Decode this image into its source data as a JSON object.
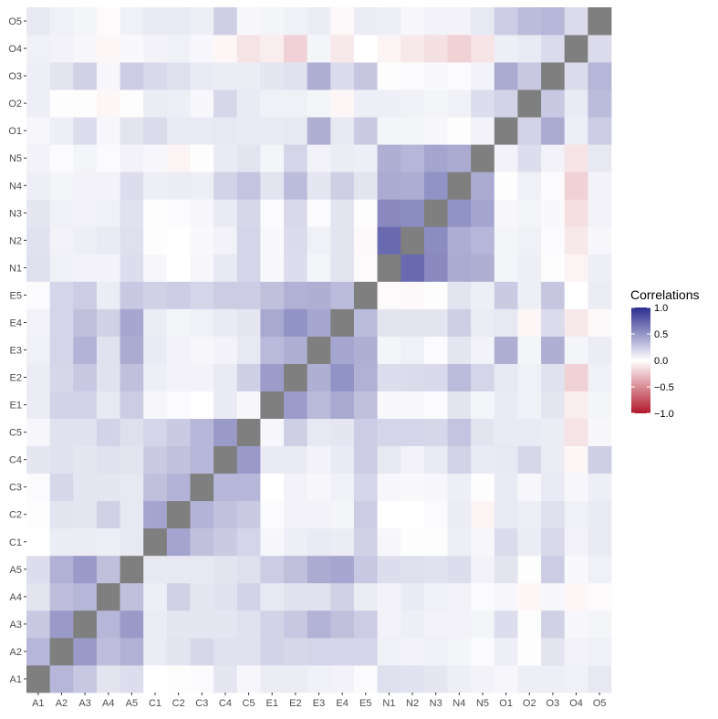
{
  "chart_data": {
    "type": "heatmap",
    "x_categories": [
      "A1",
      "A2",
      "A3",
      "A4",
      "A5",
      "C1",
      "C2",
      "C3",
      "C4",
      "C5",
      "E1",
      "E2",
      "E3",
      "E4",
      "E5",
      "N1",
      "N2",
      "N3",
      "N4",
      "N5",
      "O1",
      "O2",
      "O3",
      "O4",
      "O5"
    ],
    "y_categories": [
      "A1",
      "A2",
      "A3",
      "A4",
      "A5",
      "C1",
      "C2",
      "C3",
      "C4",
      "C5",
      "E1",
      "E2",
      "E3",
      "E4",
      "E5",
      "N1",
      "N2",
      "N3",
      "N4",
      "N5",
      "O1",
      "O2",
      "O3",
      "O4",
      "O5"
    ],
    "values": [
      [
        1.0,
        0.35,
        0.26,
        0.13,
        0.16,
        0.0,
        0.01,
        0.02,
        0.12,
        0.04,
        0.09,
        0.09,
        0.07,
        0.06,
        0.02,
        0.15,
        0.14,
        0.12,
        0.08,
        0.06,
        0.04,
        0.08,
        0.08,
        0.07,
        0.11
      ],
      [
        0.35,
        1.0,
        0.48,
        0.31,
        0.37,
        0.09,
        0.13,
        0.19,
        0.14,
        0.14,
        0.21,
        0.19,
        0.2,
        0.2,
        0.2,
        0.07,
        0.06,
        0.07,
        0.05,
        0.02,
        0.08,
        0.01,
        0.13,
        0.06,
        0.07
      ],
      [
        0.26,
        0.48,
        1.0,
        0.35,
        0.48,
        0.09,
        0.12,
        0.12,
        0.12,
        0.14,
        0.21,
        0.26,
        0.36,
        0.3,
        0.24,
        0.06,
        0.08,
        0.06,
        0.06,
        0.05,
        0.16,
        0.01,
        0.22,
        0.04,
        0.05
      ],
      [
        0.13,
        0.31,
        0.35,
        1.0,
        0.3,
        0.08,
        0.22,
        0.12,
        0.14,
        0.21,
        0.11,
        0.14,
        0.14,
        0.22,
        0.09,
        0.06,
        0.1,
        0.07,
        0.06,
        0.02,
        0.04,
        -0.04,
        0.04,
        -0.04,
        -0.02
      ],
      [
        0.16,
        0.37,
        0.48,
        0.3,
        1.0,
        0.11,
        0.11,
        0.11,
        0.13,
        0.15,
        0.24,
        0.3,
        0.4,
        0.42,
        0.26,
        0.16,
        0.15,
        0.14,
        0.16,
        0.06,
        0.13,
        -0.01,
        0.24,
        0.03,
        0.07
      ],
      [
        0.0,
        0.09,
        0.09,
        0.08,
        0.11,
        1.0,
        0.43,
        0.3,
        0.25,
        0.2,
        0.04,
        0.08,
        0.1,
        0.09,
        0.22,
        0.04,
        0.01,
        0.01,
        0.08,
        0.04,
        0.17,
        0.09,
        0.18,
        0.06,
        0.1
      ],
      [
        0.01,
        0.13,
        0.12,
        0.22,
        0.11,
        0.43,
        1.0,
        0.36,
        0.29,
        0.25,
        0.02,
        0.06,
        0.06,
        0.05,
        0.24,
        0.0,
        0.0,
        0.02,
        0.09,
        -0.05,
        0.1,
        0.08,
        0.15,
        0.07,
        0.1
      ],
      [
        0.02,
        0.19,
        0.12,
        0.12,
        0.11,
        0.3,
        0.36,
        1.0,
        0.34,
        0.34,
        0.0,
        0.06,
        0.04,
        0.07,
        0.2,
        0.04,
        0.03,
        0.04,
        0.08,
        0.01,
        0.1,
        0.04,
        0.1,
        0.04,
        0.08
      ],
      [
        0.12,
        0.14,
        0.12,
        0.14,
        0.13,
        0.25,
        0.29,
        0.34,
        1.0,
        0.48,
        0.1,
        0.1,
        0.06,
        0.1,
        0.24,
        0.11,
        0.06,
        0.1,
        0.21,
        0.1,
        0.11,
        0.19,
        0.09,
        -0.04,
        0.23
      ],
      [
        0.04,
        0.14,
        0.14,
        0.21,
        0.15,
        0.2,
        0.25,
        0.34,
        0.48,
        1.0,
        0.04,
        0.23,
        0.11,
        0.12,
        0.24,
        0.2,
        0.2,
        0.19,
        0.28,
        0.13,
        0.1,
        0.1,
        0.09,
        -0.12,
        0.04
      ],
      [
        0.09,
        0.21,
        0.21,
        0.11,
        0.24,
        0.04,
        0.02,
        0.0,
        0.1,
        0.04,
        1.0,
        0.47,
        0.33,
        0.41,
        0.3,
        0.03,
        0.03,
        0.02,
        0.13,
        0.05,
        0.1,
        0.07,
        0.12,
        -0.08,
        0.05
      ],
      [
        0.09,
        0.19,
        0.26,
        0.14,
        0.3,
        0.08,
        0.06,
        0.06,
        0.1,
        0.23,
        0.47,
        1.0,
        0.38,
        0.52,
        0.37,
        0.16,
        0.17,
        0.18,
        0.32,
        0.2,
        0.11,
        0.07,
        0.14,
        -0.2,
        0.07
      ],
      [
        0.07,
        0.2,
        0.36,
        0.14,
        0.4,
        0.1,
        0.06,
        0.04,
        0.06,
        0.11,
        0.33,
        0.38,
        1.0,
        0.42,
        0.38,
        0.05,
        0.07,
        0.02,
        0.12,
        0.06,
        0.38,
        0.05,
        0.38,
        0.05,
        0.09
      ],
      [
        0.06,
        0.2,
        0.3,
        0.22,
        0.42,
        0.09,
        0.05,
        0.07,
        0.1,
        0.12,
        0.41,
        0.52,
        0.42,
        1.0,
        0.32,
        0.13,
        0.13,
        0.13,
        0.23,
        0.09,
        0.11,
        -0.04,
        0.17,
        -0.1,
        -0.03
      ],
      [
        0.02,
        0.2,
        0.24,
        0.09,
        0.26,
        0.22,
        0.24,
        0.2,
        0.24,
        0.24,
        0.3,
        0.37,
        0.38,
        0.32,
        1.0,
        -0.02,
        -0.03,
        0.01,
        0.13,
        0.08,
        0.25,
        0.08,
        0.27,
        0.0,
        0.09
      ],
      [
        0.15,
        0.07,
        0.06,
        0.06,
        0.16,
        0.04,
        0.0,
        0.04,
        0.11,
        0.2,
        0.03,
        0.16,
        0.05,
        0.13,
        -0.02,
        1.0,
        0.71,
        0.56,
        0.4,
        0.38,
        0.05,
        0.08,
        0.01,
        -0.05,
        0.08
      ],
      [
        0.14,
        0.06,
        0.08,
        0.1,
        0.15,
        0.01,
        0.0,
        0.03,
        0.06,
        0.2,
        0.03,
        0.17,
        0.07,
        0.13,
        -0.03,
        0.71,
        1.0,
        0.55,
        0.39,
        0.35,
        0.05,
        0.07,
        0.02,
        -0.1,
        0.04
      ],
      [
        0.12,
        0.07,
        0.06,
        0.07,
        0.14,
        0.01,
        0.02,
        0.04,
        0.1,
        0.19,
        0.02,
        0.18,
        0.02,
        0.13,
        0.01,
        0.56,
        0.55,
        1.0,
        0.52,
        0.43,
        0.04,
        0.05,
        0.03,
        -0.14,
        0.06
      ],
      [
        0.08,
        0.05,
        0.06,
        0.06,
        0.16,
        0.08,
        0.09,
        0.08,
        0.21,
        0.28,
        0.13,
        0.32,
        0.12,
        0.23,
        0.13,
        0.4,
        0.39,
        0.52,
        1.0,
        0.4,
        0.01,
        0.07,
        0.02,
        -0.2,
        0.06
      ],
      [
        0.06,
        0.02,
        0.05,
        0.02,
        0.06,
        0.04,
        -0.05,
        0.01,
        0.1,
        0.13,
        0.05,
        0.2,
        0.06,
        0.09,
        0.08,
        0.38,
        0.35,
        0.43,
        0.4,
        1.0,
        0.06,
        0.16,
        0.06,
        -0.12,
        0.11
      ],
      [
        0.04,
        0.08,
        0.16,
        0.04,
        0.13,
        0.17,
        0.1,
        0.1,
        0.11,
        0.1,
        0.1,
        0.11,
        0.38,
        0.11,
        0.25,
        0.05,
        0.05,
        0.04,
        0.01,
        0.06,
        1.0,
        0.21,
        0.4,
        0.08,
        0.24
      ],
      [
        0.08,
        0.01,
        0.01,
        -0.04,
        -0.01,
        0.09,
        0.08,
        0.04,
        0.19,
        0.1,
        0.07,
        0.07,
        0.05,
        -0.04,
        0.08,
        0.08,
        0.07,
        0.05,
        0.07,
        0.16,
        0.21,
        1.0,
        0.26,
        0.1,
        0.32
      ],
      [
        0.08,
        0.13,
        0.22,
        0.04,
        0.24,
        0.18,
        0.15,
        0.1,
        0.09,
        0.09,
        0.12,
        0.14,
        0.38,
        0.17,
        0.27,
        0.01,
        0.02,
        0.03,
        0.02,
        0.06,
        0.4,
        0.26,
        1.0,
        0.17,
        0.35
      ],
      [
        0.07,
        0.06,
        0.04,
        -0.04,
        0.03,
        0.06,
        0.07,
        0.04,
        -0.04,
        -0.12,
        -0.08,
        -0.2,
        0.05,
        -0.1,
        0.0,
        -0.05,
        -0.1,
        -0.14,
        -0.2,
        -0.12,
        0.08,
        0.1,
        0.17,
        1.0,
        0.17
      ],
      [
        0.11,
        0.07,
        0.05,
        -0.02,
        0.07,
        0.1,
        0.1,
        0.08,
        0.23,
        0.04,
        0.05,
        0.07,
        0.09,
        -0.03,
        0.09,
        0.08,
        0.04,
        0.06,
        0.06,
        0.11,
        0.24,
        0.32,
        0.35,
        0.17,
        1.0
      ]
    ],
    "diagonal_color": "#7f7f7f",
    "color_scale": {
      "low": "#b2182b",
      "mid": "#ffffff",
      "high": "#2c2d8f",
      "limits": [
        -1,
        1
      ]
    },
    "legend": {
      "title": "Correlations",
      "ticks": [
        1.0,
        0.5,
        0.0,
        -0.5,
        -1.0
      ],
      "tick_labels": [
        "1.0",
        "0.5",
        "0.0",
        "−0.5",
        "−1.0"
      ],
      "position": "right"
    },
    "panel_background": "#ebebeb",
    "grid": true
  }
}
